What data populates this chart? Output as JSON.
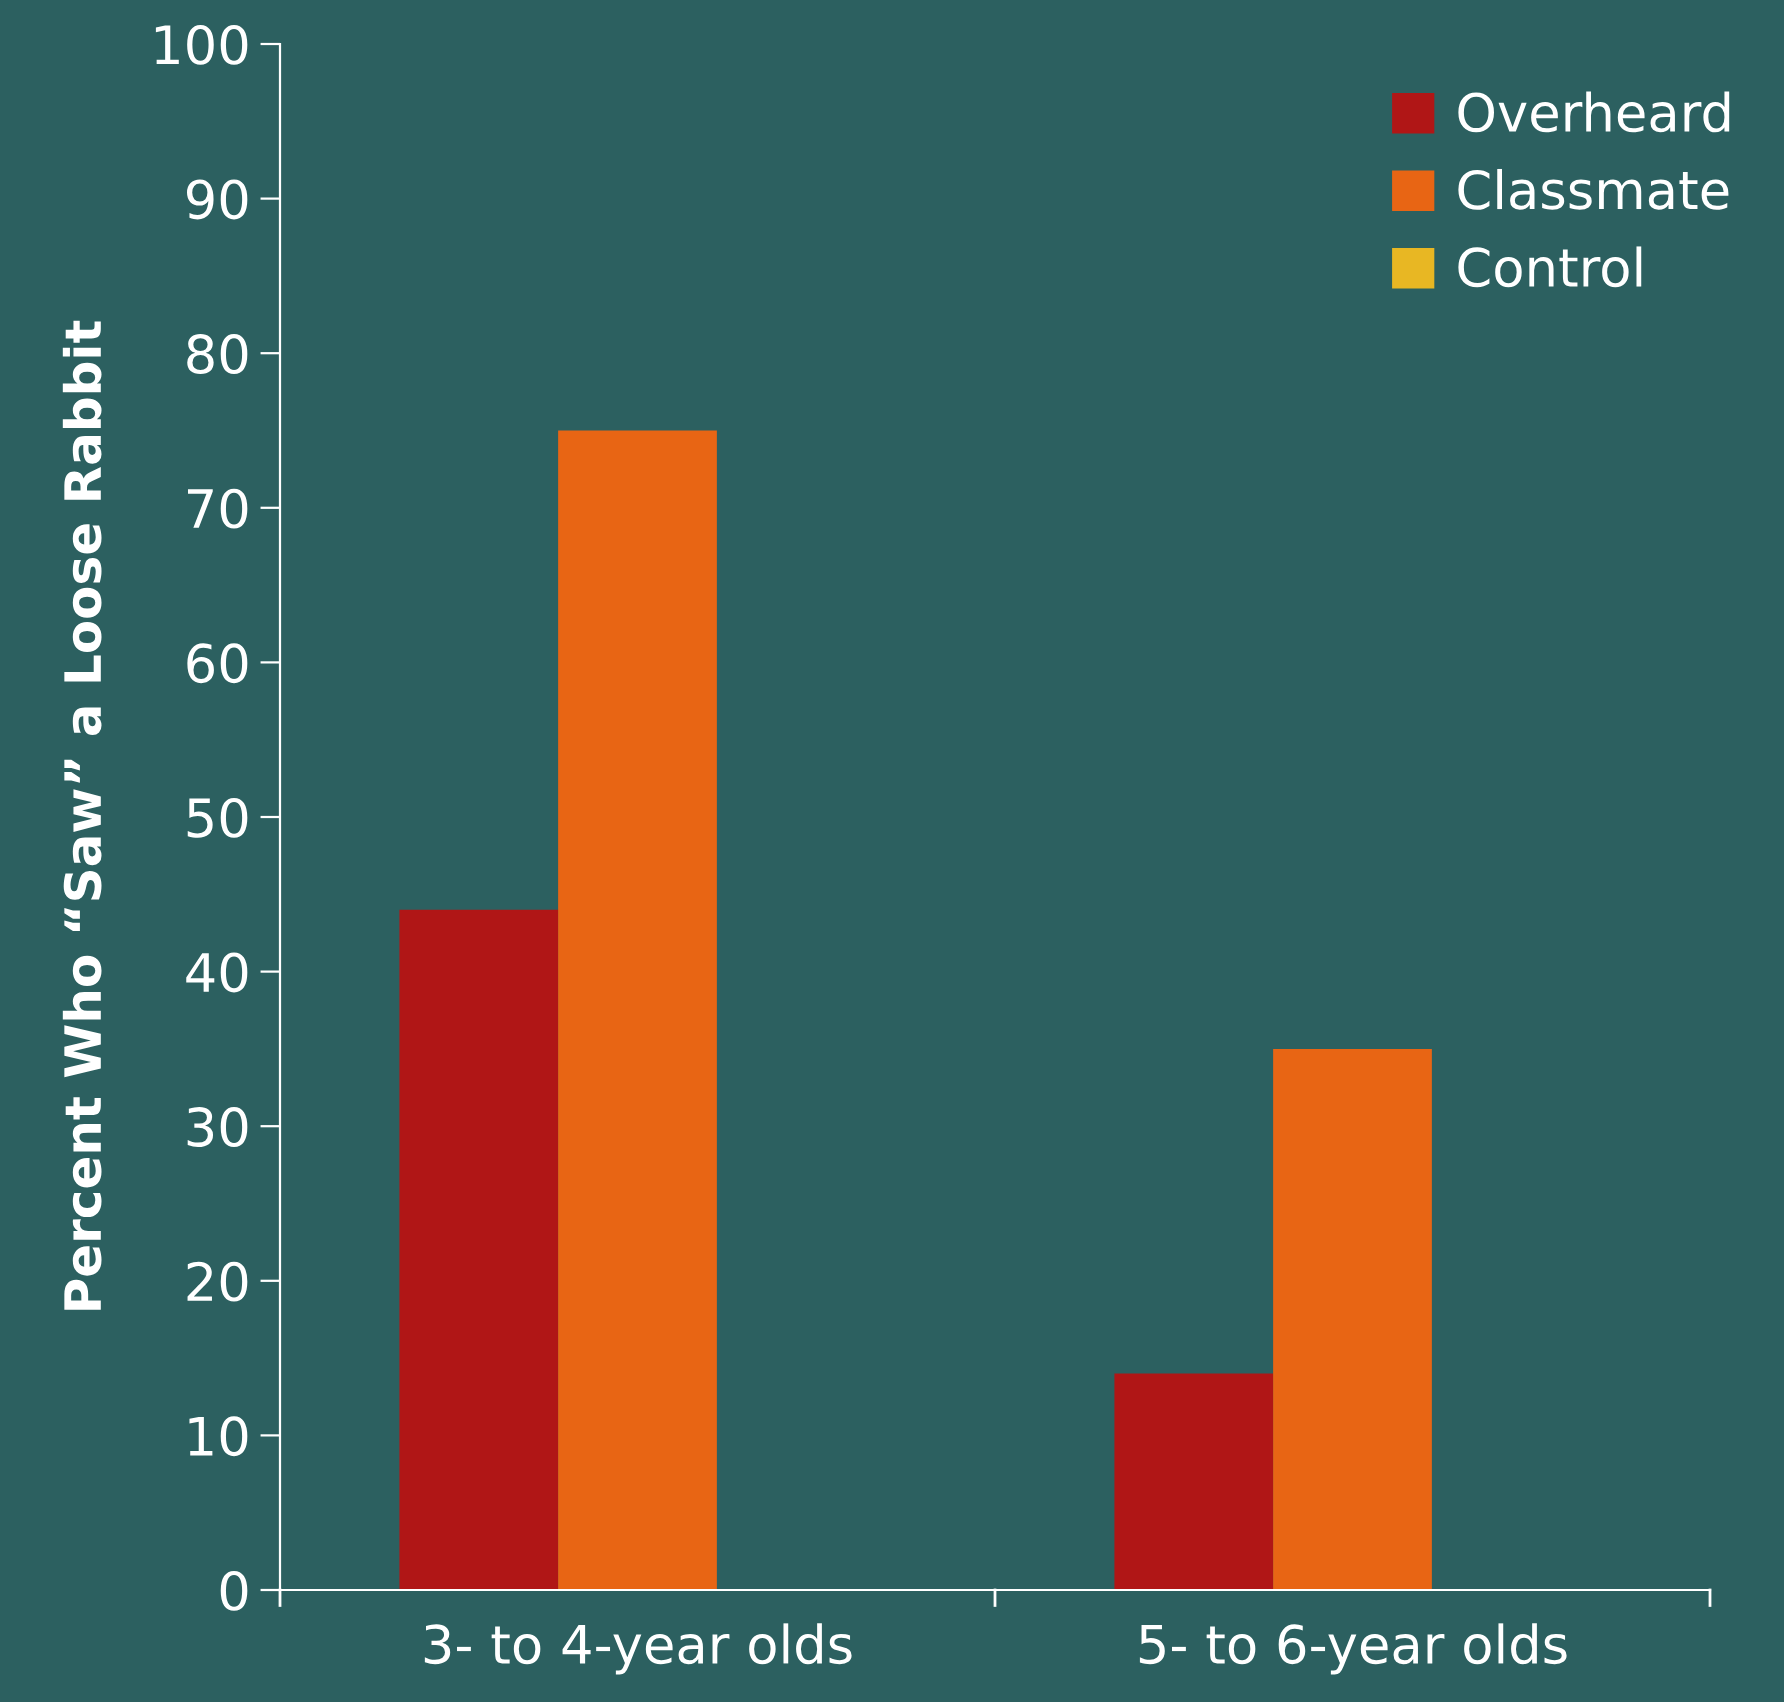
{
  "chart_data": {
    "type": "bar",
    "ylabel": "Percent Who “Saw” a Loose Rabbit",
    "categories": [
      "3- to 4-year olds",
      "5- to 6-year olds"
    ],
    "series": [
      {
        "name": "Overheard",
        "color": "#b01616",
        "values": [
          44,
          14
        ]
      },
      {
        "name": "Classmate",
        "color": "#e86514",
        "values": [
          75,
          35
        ]
      },
      {
        "name": "Control",
        "color": "#e8b723",
        "values": [
          0,
          0
        ]
      }
    ],
    "ylim": [
      0,
      100
    ],
    "yticks": [
      0,
      10,
      20,
      30,
      40,
      50,
      60,
      70,
      80,
      90,
      100
    ],
    "grid": false,
    "legend": "top right"
  }
}
